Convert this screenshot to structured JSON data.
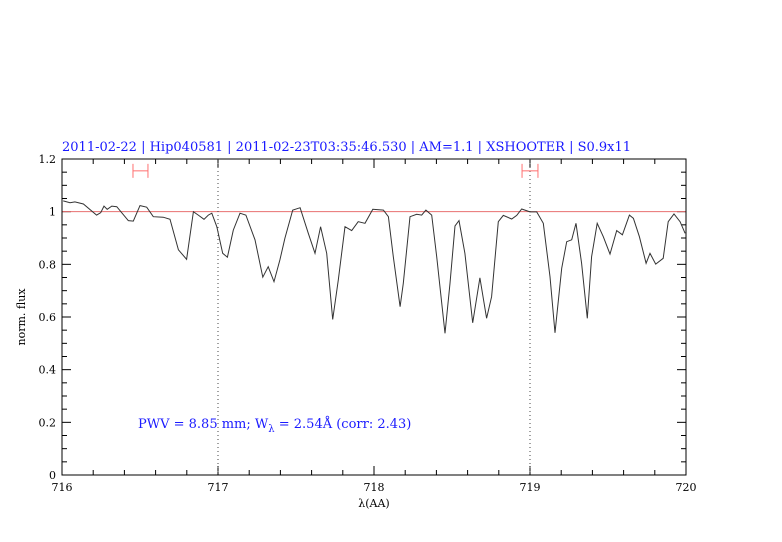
{
  "chart_data": {
    "type": "line",
    "title": "2011-02-22 | Hip040581 | 2011-02-23T03:35:46.530 | AM=1.1 | XSHOOTER | S0.9x11",
    "xlabel": "λ(AA)",
    "ylabel": "norm. flux",
    "xlim": [
      716,
      720
    ],
    "ylim": [
      0,
      1.2
    ],
    "xticks": [
      "716",
      "717",
      "718",
      "719",
      "720"
    ],
    "yticks": [
      "0",
      "0.2",
      "0.4",
      "0.6",
      "0.8",
      "1",
      "1.2"
    ],
    "grid": false,
    "annotation": {
      "pwv": "PWV = 8.85 mm; W",
      "sub": "λ",
      "rest": " = 2.54Å (corr: 2.43)"
    },
    "reference_line": {
      "y": 1,
      "color": "#e87070"
    },
    "vertical_markers": [
      717,
      719
    ],
    "range_markers": [
      {
        "x": [
          716.455,
          716.551
        ],
        "y": 1.155,
        "color": "#ff7070"
      },
      {
        "x": [
          718.949,
          719.051
        ],
        "y": 1.155,
        "color": "#ff7070"
      }
    ],
    "colors": {
      "title": "#1a1aff",
      "spectrum": "#333333"
    },
    "series": [
      {
        "x": [
          716.008,
          716.051,
          716.083,
          716.137,
          716.222,
          716.248,
          716.269,
          716.29,
          716.319,
          716.351,
          716.383,
          716.425,
          716.457,
          716.5,
          716.543,
          716.585,
          716.649,
          716.692,
          716.746,
          716.799,
          716.842,
          716.874,
          716.91,
          716.938,
          716.96,
          716.992,
          717.03,
          717.06,
          717.098,
          717.141,
          717.179,
          717.237,
          717.287,
          717.322,
          717.359,
          717.397,
          717.429,
          717.479,
          717.526,
          717.579,
          717.622,
          717.658,
          717.697,
          717.735,
          717.771,
          717.814,
          717.857,
          717.899,
          717.942,
          717.992,
          718.06,
          718.092,
          718.124,
          718.167,
          718.188,
          718.231,
          718.274,
          718.306,
          718.333,
          718.37,
          718.402,
          718.455,
          718.487,
          718.519,
          718.545,
          718.583,
          718.633,
          718.679,
          718.722,
          718.754,
          718.797,
          718.829,
          718.883,
          718.915,
          718.947,
          719.0,
          719.043,
          719.085,
          719.128,
          719.16,
          719.203,
          719.235,
          719.267,
          719.295,
          719.331,
          719.367,
          719.395,
          719.431,
          719.47,
          719.513,
          719.556,
          719.592,
          719.637,
          719.663,
          719.701,
          719.744,
          719.769,
          719.806,
          719.854,
          719.886,
          719.923,
          719.962,
          719.994
        ],
        "y": [
          1.041,
          1.034,
          1.037,
          1.029,
          0.987,
          0.996,
          1.021,
          1.009,
          1.021,
          1.019,
          0.996,
          0.966,
          0.964,
          1.023,
          1.017,
          0.981,
          0.979,
          0.971,
          0.855,
          0.819,
          1.0,
          0.987,
          0.971,
          0.987,
          0.994,
          0.943,
          0.842,
          0.827,
          0.93,
          0.994,
          0.987,
          0.893,
          0.751,
          0.791,
          0.734,
          0.817,
          0.899,
          1.006,
          1.015,
          0.918,
          0.842,
          0.943,
          0.842,
          0.591,
          0.741,
          0.943,
          0.928,
          0.962,
          0.956,
          1.009,
          1.006,
          0.981,
          0.829,
          0.639,
          0.728,
          0.981,
          0.99,
          0.987,
          1.006,
          0.987,
          0.829,
          0.538,
          0.728,
          0.946,
          0.966,
          0.842,
          0.578,
          0.749,
          0.595,
          0.677,
          0.962,
          0.986,
          0.972,
          0.986,
          1.01,
          0.999,
          0.999,
          0.956,
          0.753,
          0.54,
          0.785,
          0.886,
          0.893,
          0.956,
          0.804,
          0.595,
          0.829,
          0.956,
          0.905,
          0.839,
          0.928,
          0.912,
          0.987,
          0.975,
          0.905,
          0.804,
          0.842,
          0.801,
          0.823,
          0.962,
          0.991,
          0.962,
          0.918
        ]
      }
    ]
  }
}
